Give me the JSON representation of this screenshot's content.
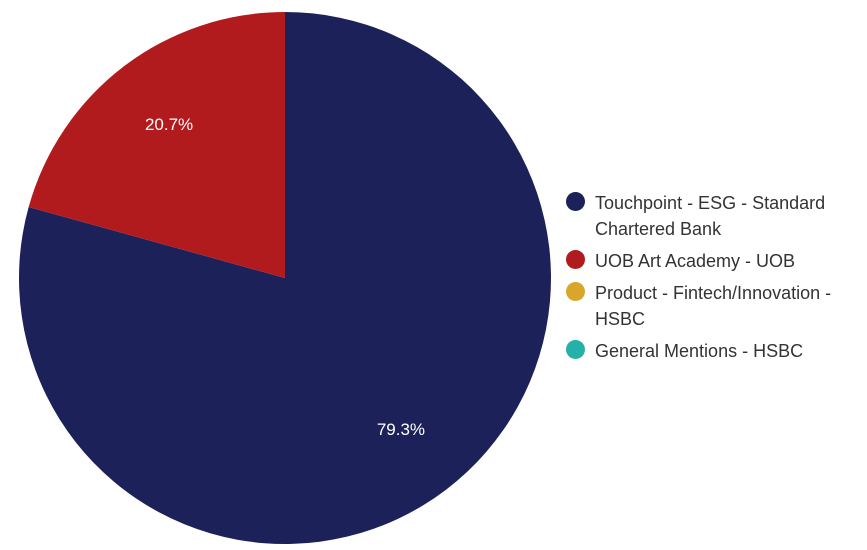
{
  "chart_data": {
    "type": "pie",
    "title": "",
    "series": [
      {
        "name": "Touchpoint - ESG - Standard Chartered Bank",
        "value": 79.3,
        "color": "#1c2259"
      },
      {
        "name": "UOB Art Academy - UOB",
        "value": 20.7,
        "color": "#b21b1e"
      },
      {
        "name": "Product - Fintech/Innovation - HSBC",
        "value": 0,
        "color": "#d9a52a"
      },
      {
        "name": "General Mentions - HSBC",
        "value": 0,
        "color": "#25b1a7"
      }
    ],
    "data_labels": [
      "79.3%",
      "20.7%"
    ],
    "legend_position": "right"
  }
}
